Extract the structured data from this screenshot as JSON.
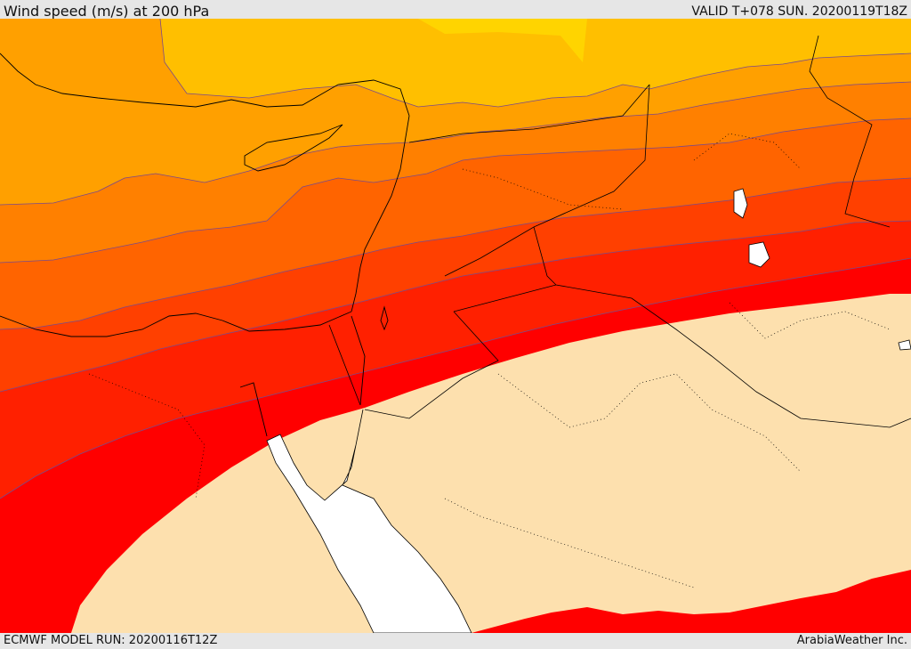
{
  "header": {
    "title": "Wind speed (m/s) at 200 hPa",
    "valid": "VALID T+078 SUN. 20200119T18Z"
  },
  "footer": {
    "model_run": "ECMWF MODEL RUN: 20200116T12Z",
    "credit": "ArabiaWeather Inc."
  },
  "colors": {
    "band_1": "#ffd400",
    "band_2": "#ffbf00",
    "band_3": "#ffa000",
    "band_4": "#ff8000",
    "band_5": "#ff6400",
    "band_6": "#ff4000",
    "band_7": "#ff2000",
    "band_8": "#ff0000",
    "calm": "#fde0ae",
    "sea": "#ffffff"
  }
}
